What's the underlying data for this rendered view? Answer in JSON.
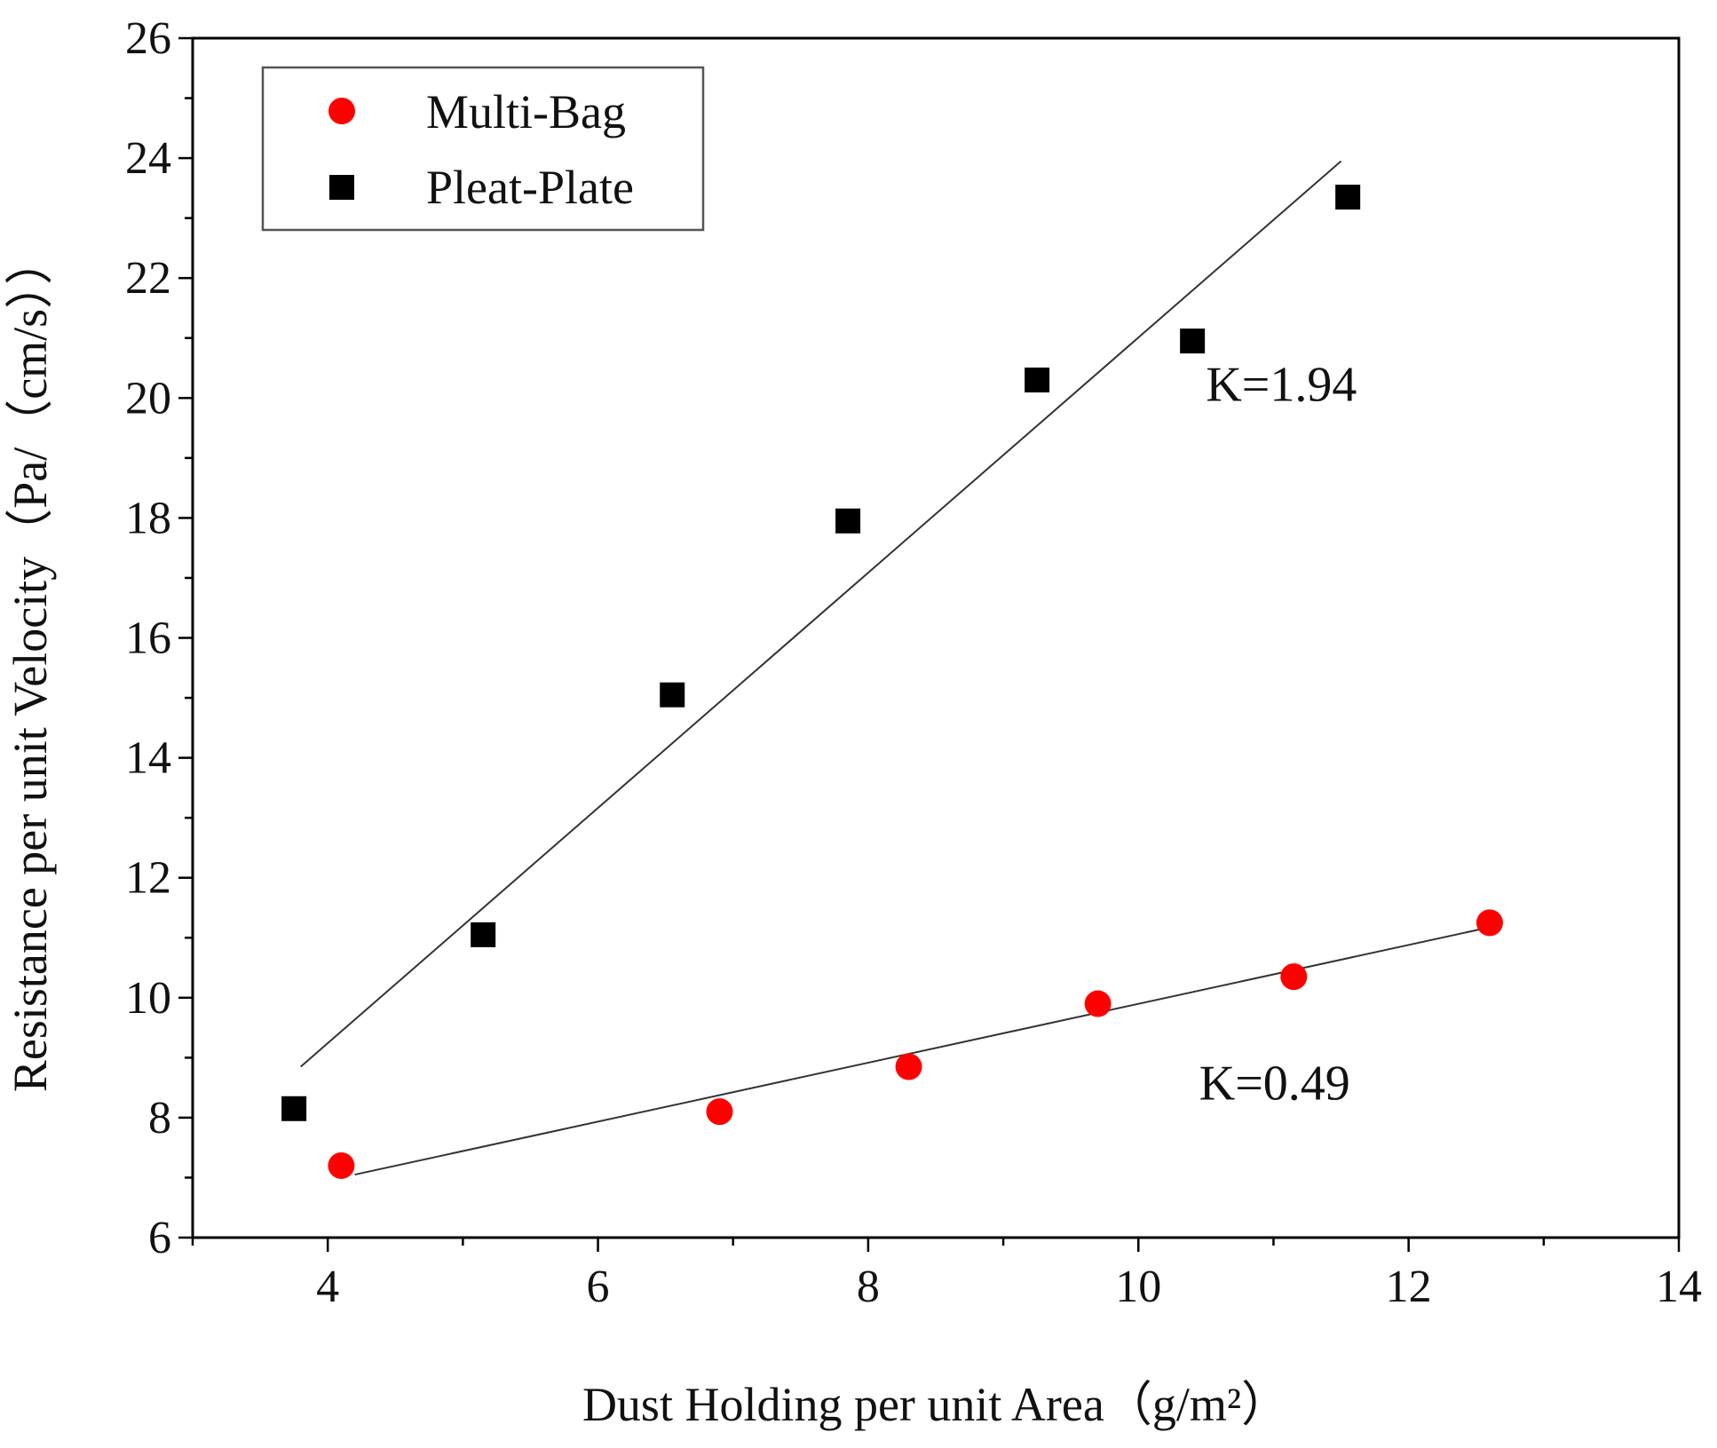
{
  "chart_data": {
    "type": "scatter",
    "title": "",
    "xlabel": "Dust Holding per unit Area（g/m²）",
    "ylabel": "Resistance per unit Velocity（Pa/（cm/s））",
    "xlim": [
      3,
      14
    ],
    "ylim": [
      6,
      26
    ],
    "xticks": [
      4,
      6,
      8,
      10,
      12,
      14
    ],
    "yticks": [
      6,
      8,
      10,
      12,
      14,
      16,
      18,
      20,
      22,
      24,
      26
    ],
    "legend_position": "top-left",
    "series": [
      {
        "name": "Multi-Bag",
        "marker": "circle",
        "color": "#ff0000",
        "x": [
          4.1,
          6.9,
          8.3,
          9.7,
          11.15,
          12.6
        ],
        "y": [
          7.2,
          8.1,
          8.85,
          9.9,
          10.35,
          11.25
        ],
        "fit_line": {
          "x": [
            4.2,
            12.55
          ],
          "y": [
            7.05,
            11.15
          ]
        },
        "annotation": "K=0.49"
      },
      {
        "name": "Pleat-Plate",
        "marker": "square",
        "color": "#000000",
        "x": [
          3.75,
          5.15,
          6.55,
          7.85,
          9.25,
          10.4,
          11.55
        ],
        "y": [
          8.15,
          11.05,
          15.05,
          17.95,
          20.3,
          20.95,
          23.35
        ],
        "fit_line": {
          "x": [
            3.8,
            11.5
          ],
          "y": [
            8.85,
            23.95
          ]
        },
        "annotation": "K=1.94"
      }
    ]
  }
}
